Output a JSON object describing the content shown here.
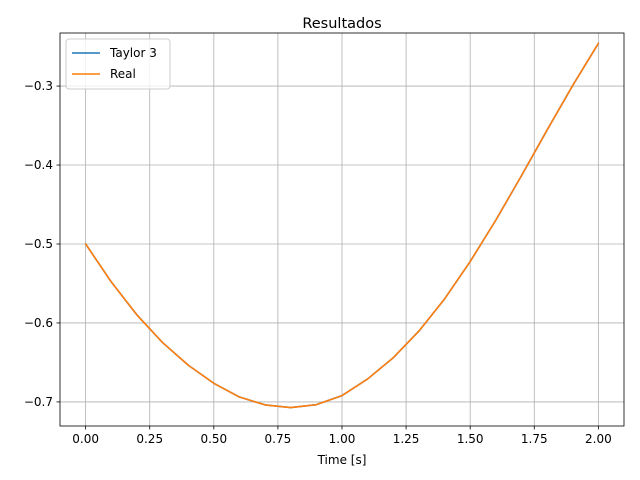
{
  "chart_data": {
    "type": "line",
    "title": "Resultados",
    "xlabel": "Time [s]",
    "ylabel": "",
    "xlim": [
      -0.1,
      2.1
    ],
    "ylim": [
      -0.7305,
      -0.2328
    ],
    "xticks": [
      0.0,
      0.25,
      0.5,
      0.75,
      1.0,
      1.25,
      1.5,
      1.75,
      2.0
    ],
    "xtick_labels": [
      "0.00",
      "0.25",
      "0.50",
      "0.75",
      "1.00",
      "1.25",
      "1.50",
      "1.75",
      "2.00"
    ],
    "yticks": [
      -0.7,
      -0.6,
      -0.5,
      -0.4,
      -0.3
    ],
    "ytick_labels": [
      "−0.7",
      "−0.6",
      "−0.5",
      "−0.4",
      "−0.3"
    ],
    "grid": true,
    "legend_position": "top-left",
    "x": [
      0.0,
      0.1,
      0.2,
      0.3,
      0.4,
      0.5,
      0.6,
      0.7,
      0.8,
      0.9,
      1.0,
      1.1,
      1.2,
      1.3,
      1.4,
      1.5,
      1.6,
      1.7,
      1.8,
      1.9,
      2.0
    ],
    "series": [
      {
        "name": "Taylor 3",
        "color": "#1f77b4",
        "values": [
          -0.5,
          -0.548,
          -0.5898,
          -0.6248,
          -0.6534,
          -0.6764,
          -0.6938,
          -0.7038,
          -0.7071,
          -0.7035,
          -0.692,
          -0.6709,
          -0.644,
          -0.6103,
          -0.5696,
          -0.5223,
          -0.4698,
          -0.4136,
          -0.3557,
          -0.2992,
          -0.246
        ]
      },
      {
        "name": "Real",
        "color": "#ff7f0e",
        "values": [
          -0.5,
          -0.548,
          -0.5898,
          -0.6248,
          -0.6534,
          -0.6764,
          -0.6938,
          -0.7038,
          -0.7071,
          -0.7035,
          -0.692,
          -0.6709,
          -0.644,
          -0.6103,
          -0.5696,
          -0.5223,
          -0.4698,
          -0.4136,
          -0.3557,
          -0.2992,
          -0.246
        ]
      }
    ]
  }
}
